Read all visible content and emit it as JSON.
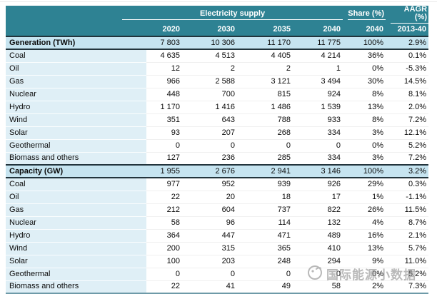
{
  "colors": {
    "header_teal": "#2E8293",
    "band_blue": "#C6E4F0",
    "label_column_blue": "#DFEFF6",
    "dark_border": "#22343C",
    "bottom_border": "#6E9AA8",
    "header_text": "#FFFFFF",
    "body_text": "#0B0B0B",
    "watermark_gray": "#8F8F8F"
  },
  "header": {
    "group_label": "Electricity supply",
    "years": [
      "2020",
      "2030",
      "2035",
      "2040"
    ],
    "share_label": "Share (%)",
    "share_year": "2040",
    "aagr_label": "AAGR (%)",
    "aagr_period": "2013-40"
  },
  "table": {
    "sections": [
      {
        "title": "Generation (TWh)",
        "totals": [
          "7 803",
          "10 306",
          "11 170",
          "11 775",
          "100%",
          "2.9%"
        ],
        "rows": [
          {
            "label": "Coal",
            "values": [
              "4 635",
              "4 513",
              "4 405",
              "4 214",
              "36%",
              "0.1%"
            ]
          },
          {
            "label": "Oil",
            "values": [
              "12",
              "2",
              "2",
              "1",
              "0%",
              "-5.3%"
            ]
          },
          {
            "label": "Gas",
            "values": [
              "966",
              "2 588",
              "3 121",
              "3 494",
              "30%",
              "14.5%"
            ]
          },
          {
            "label": "Nuclear",
            "values": [
              "448",
              "700",
              "815",
              "924",
              "8%",
              "8.1%"
            ]
          },
          {
            "label": "Hydro",
            "values": [
              "1 170",
              "1 416",
              "1 486",
              "1 539",
              "13%",
              "2.0%"
            ]
          },
          {
            "label": "Wind",
            "values": [
              "351",
              "643",
              "788",
              "933",
              "8%",
              "7.2%"
            ]
          },
          {
            "label": "Solar",
            "values": [
              "93",
              "207",
              "268",
              "334",
              "3%",
              "12.1%"
            ]
          },
          {
            "label": "Geothermal",
            "values": [
              "0",
              "0",
              "0",
              "0",
              "0%",
              "5.2%"
            ]
          },
          {
            "label": "Biomass and others",
            "values": [
              "127",
              "236",
              "285",
              "334",
              "3%",
              "7.2%"
            ]
          }
        ]
      },
      {
        "title": "Capacity (GW)",
        "totals": [
          "1 955",
          "2 676",
          "2 941",
          "3 146",
          "100%",
          "3.2%"
        ],
        "rows": [
          {
            "label": "Coal",
            "values": [
              "977",
              "952",
              "939",
              "926",
              "29%",
              "0.3%"
            ]
          },
          {
            "label": "Oil",
            "values": [
              "22",
              "20",
              "18",
              "17",
              "1%",
              "-1.1%"
            ]
          },
          {
            "label": "Gas",
            "values": [
              "212",
              "604",
              "737",
              "822",
              "26%",
              "11.5%"
            ]
          },
          {
            "label": "Nuclear",
            "values": [
              "58",
              "96",
              "114",
              "132",
              "4%",
              "8.7%"
            ]
          },
          {
            "label": "Hydro",
            "values": [
              "364",
              "447",
              "471",
              "489",
              "16%",
              "2.1%"
            ]
          },
          {
            "label": "Wind",
            "values": [
              "200",
              "315",
              "365",
              "410",
              "13%",
              "5.7%"
            ]
          },
          {
            "label": "Solar",
            "values": [
              "100",
              "203",
              "248",
              "294",
              "9%",
              "11.0%"
            ]
          },
          {
            "label": "Geothermal",
            "values": [
              "0",
              "0",
              "0",
              "0",
              "0%",
              "5.2%"
            ]
          },
          {
            "label": "Biomass and others",
            "values": [
              "22",
              "41",
              "49",
              "58",
              "2%",
              "7.3%"
            ]
          }
        ]
      }
    ]
  },
  "watermark": {
    "text": "国际能源小数据"
  },
  "chart_data": {
    "type": "table",
    "title": "Electricity supply",
    "column_groups": [
      {
        "label": "Electricity supply",
        "columns": [
          "2020",
          "2030",
          "2035",
          "2040"
        ]
      },
      {
        "label": "Share (%)",
        "columns": [
          "2040"
        ]
      },
      {
        "label": "AAGR (%)",
        "columns": [
          "2013-40"
        ]
      }
    ],
    "columns": [
      "2020",
      "2030",
      "2035",
      "2040",
      "Share (%) 2040",
      "AAGR (%) 2013-40"
    ],
    "sections": [
      {
        "name": "Generation (TWh)",
        "total": {
          "values": [
            7803,
            10306,
            11170,
            11775
          ],
          "share_2040_pct": 100,
          "aagr_2013_40_pct": 2.9
        },
        "rows": [
          {
            "label": "Coal",
            "values": [
              4635,
              4513,
              4405,
              4214
            ],
            "share_2040_pct": 36,
            "aagr_2013_40_pct": 0.1
          },
          {
            "label": "Oil",
            "values": [
              12,
              2,
              2,
              1
            ],
            "share_2040_pct": 0,
            "aagr_2013_40_pct": -5.3
          },
          {
            "label": "Gas",
            "values": [
              966,
              2588,
              3121,
              3494
            ],
            "share_2040_pct": 30,
            "aagr_2013_40_pct": 14.5
          },
          {
            "label": "Nuclear",
            "values": [
              448,
              700,
              815,
              924
            ],
            "share_2040_pct": 8,
            "aagr_2013_40_pct": 8.1
          },
          {
            "label": "Hydro",
            "values": [
              1170,
              1416,
              1486,
              1539
            ],
            "share_2040_pct": 13,
            "aagr_2013_40_pct": 2.0
          },
          {
            "label": "Wind",
            "values": [
              351,
              643,
              788,
              933
            ],
            "share_2040_pct": 8,
            "aagr_2013_40_pct": 7.2
          },
          {
            "label": "Solar",
            "values": [
              93,
              207,
              268,
              334
            ],
            "share_2040_pct": 3,
            "aagr_2013_40_pct": 12.1
          },
          {
            "label": "Geothermal",
            "values": [
              0,
              0,
              0,
              0
            ],
            "share_2040_pct": 0,
            "aagr_2013_40_pct": 5.2
          },
          {
            "label": "Biomass and others",
            "values": [
              127,
              236,
              285,
              334
            ],
            "share_2040_pct": 3,
            "aagr_2013_40_pct": 7.2
          }
        ]
      },
      {
        "name": "Capacity (GW)",
        "total": {
          "values": [
            1955,
            2676,
            2941,
            3146
          ],
          "share_2040_pct": 100,
          "aagr_2013_40_pct": 3.2
        },
        "rows": [
          {
            "label": "Coal",
            "values": [
              977,
              952,
              939,
              926
            ],
            "share_2040_pct": 29,
            "aagr_2013_40_pct": 0.3
          },
          {
            "label": "Oil",
            "values": [
              22,
              20,
              18,
              17
            ],
            "share_2040_pct": 1,
            "aagr_2013_40_pct": -1.1
          },
          {
            "label": "Gas",
            "values": [
              212,
              604,
              737,
              822
            ],
            "share_2040_pct": 26,
            "aagr_2013_40_pct": 11.5
          },
          {
            "label": "Nuclear",
            "values": [
              58,
              96,
              114,
              132
            ],
            "share_2040_pct": 4,
            "aagr_2013_40_pct": 8.7
          },
          {
            "label": "Hydro",
            "values": [
              364,
              447,
              471,
              489
            ],
            "share_2040_pct": 16,
            "aagr_2013_40_pct": 2.1
          },
          {
            "label": "Wind",
            "values": [
              200,
              315,
              365,
              410
            ],
            "share_2040_pct": 13,
            "aagr_2013_40_pct": 5.7
          },
          {
            "label": "Solar",
            "values": [
              100,
              203,
              248,
              294
            ],
            "share_2040_pct": 9,
            "aagr_2013_40_pct": 11.0
          },
          {
            "label": "Geothermal",
            "values": [
              0,
              0,
              0,
              0
            ],
            "share_2040_pct": 0,
            "aagr_2013_40_pct": 5.2
          },
          {
            "label": "Biomass and others",
            "values": [
              22,
              41,
              49,
              58
            ],
            "share_2040_pct": 2,
            "aagr_2013_40_pct": 7.3
          }
        ]
      }
    ]
  }
}
